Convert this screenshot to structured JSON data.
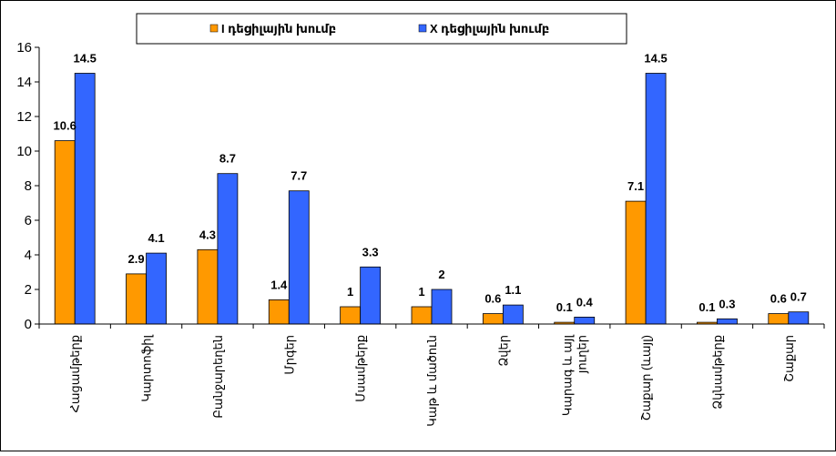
{
  "chart_data": {
    "type": "bar",
    "categories": [
      "Հացամթերք",
      "Կարտոֆիլ",
      "Բանջարեղեն",
      "Մրգեր",
      "Մսամթերք",
      "Կաթ և մածուն",
      "Ձվեր",
      "Կարագ և այլ յուղեր",
      "Շաքար (ևայլ)",
      "Ձկնամթերք",
      "Շաքար"
    ],
    "category_lines": [
      [
        "Հացամթերք"
      ],
      [
        "Կարտոֆիլ"
      ],
      [
        "Բանջարեղեն"
      ],
      [
        "Մրգեր"
      ],
      [
        "Մսամթերք"
      ],
      [
        "Կաթ և մածուն"
      ],
      [
        "Ձվեր"
      ],
      [
        "Կարագ և այլ",
        "յուղեր"
      ],
      [
        "Շաքար (ևայլ)"
      ],
      [
        "Ձկնամթերք"
      ],
      [
        "Շաքար"
      ]
    ],
    "series": [
      {
        "name": "I դեցիլային խումբ",
        "values": [
          10.6,
          2.9,
          4.3,
          1.4,
          1,
          1,
          0.6,
          0.1,
          7.1,
          0.1,
          0.6
        ],
        "color": "#ff9900"
      },
      {
        "name": "X դեցիլային խումբ",
        "values": [
          14.5,
          4.1,
          8.7,
          7.7,
          3.3,
          2,
          1.1,
          0.4,
          14.5,
          0.3,
          0.7
        ],
        "color": "#3366ff"
      }
    ],
    "data_labels": [
      [
        "10.6",
        "2.9",
        "4.3",
        "1.4",
        "1",
        "1",
        "0.6",
        "0.1",
        "7.1",
        "0.1",
        "0.6"
      ],
      [
        "14.5",
        "4.1",
        "8.7",
        "7.7",
        "3.3",
        "2",
        "1.1",
        "0.4",
        "14.5",
        "0.3",
        "0.7"
      ]
    ],
    "yticks": [
      "0",
      "2",
      "4",
      "6",
      "8",
      "10",
      "12",
      "14",
      "16"
    ],
    "ylim": [
      0,
      16
    ],
    "title": "",
    "xlabel": "",
    "ylabel": "",
    "grid": false,
    "legend": "top"
  }
}
